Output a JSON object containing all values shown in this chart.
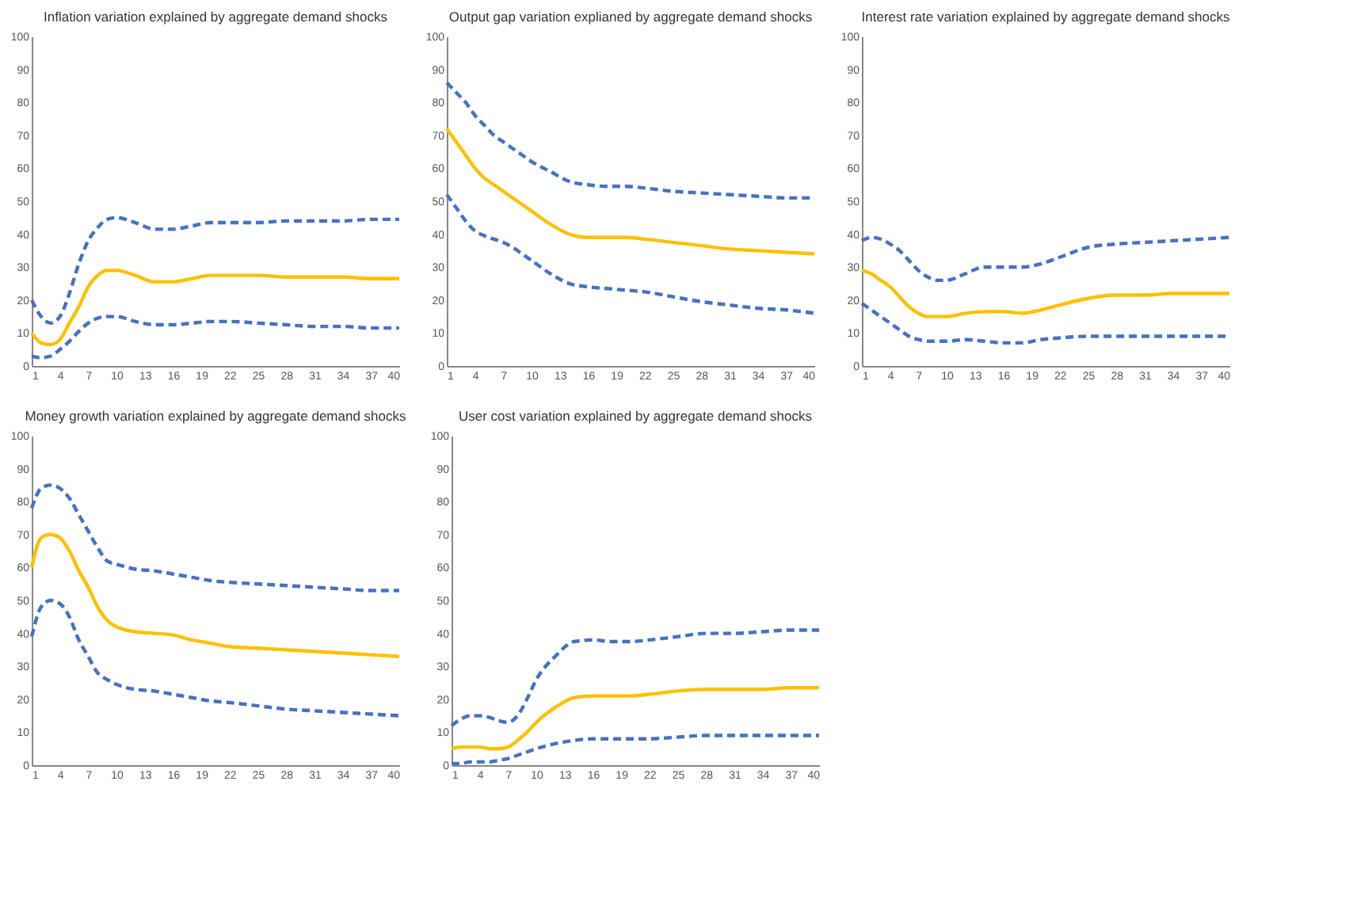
{
  "chart_data": [
    {
      "type": "line",
      "title": "Inflation variation explained by aggregate demand shocks",
      "x": [
        1,
        2,
        3,
        4,
        5,
        6,
        7,
        8,
        9,
        10,
        12,
        14,
        16,
        18,
        20,
        22,
        25,
        28,
        31,
        34,
        37,
        40
      ],
      "xlim": [
        1,
        40
      ],
      "xticks": [
        1,
        4,
        7,
        10,
        13,
        16,
        19,
        22,
        25,
        28,
        31,
        34,
        37,
        40
      ],
      "ylim": [
        0,
        100
      ],
      "yticks": [
        0,
        10,
        20,
        30,
        40,
        50,
        60,
        70,
        80,
        90,
        100
      ],
      "grid": false,
      "legend": false,
      "series": [
        {
          "color": "#4472c4",
          "line_style": "dashed",
          "values": [
            20,
            15,
            13,
            15,
            22,
            31,
            38,
            42,
            44.5,
            45,
            43.5,
            41.5,
            41.5,
            42.5,
            43.5,
            43.5,
            43.5,
            44,
            44,
            44,
            44.5,
            44.5
          ]
        },
        {
          "color": "#ffc000",
          "line_style": "solid",
          "values": [
            10,
            7,
            6.5,
            8,
            13,
            18,
            24,
            27.5,
            29,
            29,
            27.5,
            25.5,
            25.5,
            26.5,
            27.5,
            27.5,
            27.5,
            27,
            27,
            27,
            26.5,
            26.5
          ]
        },
        {
          "color": "#4472c4",
          "line_style": "dashed",
          "values": [
            3,
            2.5,
            3,
            5,
            7.5,
            10.5,
            13,
            14.5,
            15,
            15,
            13.5,
            12.5,
            12.5,
            13,
            13.5,
            13.5,
            13,
            12.5,
            12,
            12,
            11.5,
            11.5
          ]
        }
      ]
    },
    {
      "type": "line",
      "title": "Output gap variation explianed by aggregate demand shocks",
      "x": [
        1,
        2,
        3,
        4,
        5,
        6,
        7,
        8,
        9,
        10,
        12,
        14,
        16,
        18,
        20,
        22,
        25,
        28,
        31,
        34,
        37,
        40
      ],
      "xlim": [
        1,
        40
      ],
      "xticks": [
        1,
        4,
        7,
        10,
        13,
        16,
        19,
        22,
        25,
        28,
        31,
        34,
        37,
        40
      ],
      "ylim": [
        0,
        100
      ],
      "yticks": [
        0,
        10,
        20,
        30,
        40,
        50,
        60,
        70,
        80,
        90,
        100
      ],
      "grid": false,
      "legend": false,
      "series": [
        {
          "color": "#4472c4",
          "line_style": "dashed",
          "values": [
            86,
            83,
            80,
            76,
            73,
            70,
            68,
            66,
            64,
            62,
            59,
            56,
            55,
            54.5,
            54.5,
            54,
            53,
            52.5,
            52,
            51.5,
            51,
            51
          ]
        },
        {
          "color": "#ffc000",
          "line_style": "solid",
          "values": [
            72,
            68,
            64,
            60,
            57,
            55,
            53,
            51,
            49,
            47,
            43,
            40,
            39,
            39,
            39,
            38.5,
            37.5,
            36.5,
            35.5,
            35,
            34.5,
            34
          ]
        },
        {
          "color": "#4472c4",
          "line_style": "dashed",
          "values": [
            52,
            48,
            44,
            41,
            39.5,
            38.5,
            37.5,
            36,
            34,
            32,
            28,
            25,
            24,
            23.5,
            23,
            22.5,
            21,
            19.5,
            18.5,
            17.5,
            17,
            16
          ]
        }
      ]
    },
    {
      "type": "line",
      "title": "Interest rate variation explained by aggregate demand shocks",
      "x": [
        1,
        2,
        3,
        4,
        5,
        6,
        7,
        8,
        9,
        10,
        12,
        14,
        16,
        18,
        20,
        22,
        25,
        28,
        31,
        34,
        37,
        40
      ],
      "xlim": [
        1,
        40
      ],
      "xticks": [
        1,
        4,
        7,
        10,
        13,
        16,
        19,
        22,
        25,
        28,
        31,
        34,
        37,
        40
      ],
      "ylim": [
        0,
        100
      ],
      "yticks": [
        0,
        10,
        20,
        30,
        40,
        50,
        60,
        70,
        80,
        90,
        100
      ],
      "grid": false,
      "legend": false,
      "series": [
        {
          "color": "#4472c4",
          "line_style": "dashed",
          "values": [
            38,
            39,
            38.5,
            37,
            35,
            32,
            29,
            27,
            26,
            26,
            28,
            30,
            30,
            30,
            31,
            33,
            36,
            37,
            37.5,
            38,
            38.5,
            39
          ]
        },
        {
          "color": "#ffc000",
          "line_style": "solid",
          "values": [
            29,
            28,
            26,
            24,
            21,
            18,
            16,
            15,
            15,
            15,
            16,
            16.5,
            16.5,
            16,
            17,
            18.5,
            20.5,
            21.5,
            21.5,
            22,
            22,
            22
          ]
        },
        {
          "color": "#4472c4",
          "line_style": "dashed",
          "values": [
            19,
            17,
            15,
            13,
            11,
            9,
            8,
            7.5,
            7.5,
            7.5,
            8,
            7.5,
            7,
            7,
            8,
            8.5,
            9,
            9,
            9,
            9,
            9,
            9
          ]
        }
      ]
    },
    {
      "type": "line",
      "title": "Money growth variation explained by aggregate demand shocks",
      "x": [
        1,
        2,
        3,
        4,
        5,
        6,
        7,
        8,
        9,
        10,
        12,
        14,
        16,
        18,
        20,
        22,
        25,
        28,
        31,
        34,
        37,
        40
      ],
      "xlim": [
        1,
        40
      ],
      "xticks": [
        1,
        4,
        7,
        10,
        13,
        16,
        19,
        22,
        25,
        28,
        31,
        34,
        37,
        40
      ],
      "ylim": [
        0,
        100
      ],
      "yticks": [
        0,
        10,
        20,
        30,
        40,
        50,
        60,
        70,
        80,
        90,
        100
      ],
      "grid": false,
      "legend": false,
      "series": [
        {
          "color": "#4472c4",
          "line_style": "dashed",
          "values": [
            78,
            84,
            85,
            84,
            81,
            76,
            71,
            66,
            62,
            61,
            59.5,
            59,
            58,
            57,
            56,
            55.5,
            55,
            54.5,
            54,
            53.5,
            53,
            53
          ]
        },
        {
          "color": "#ffc000",
          "line_style": "solid",
          "values": [
            60,
            69,
            70,
            69,
            65,
            59,
            54,
            48,
            44,
            42,
            40.5,
            40,
            39.5,
            38,
            37,
            36,
            35.5,
            35,
            34.5,
            34,
            33.5,
            33
          ]
        },
        {
          "color": "#4472c4",
          "line_style": "dashed",
          "values": [
            39,
            48,
            50,
            49,
            45,
            38,
            33,
            28,
            26,
            24.5,
            23,
            22.5,
            21.5,
            20.5,
            19.5,
            19,
            18,
            17,
            16.5,
            16,
            15.5,
            15
          ]
        }
      ]
    },
    {
      "type": "line",
      "title": "User cost variation explained by aggregate demand shocks",
      "x": [
        1,
        2,
        3,
        4,
        5,
        6,
        7,
        8,
        9,
        10,
        12,
        14,
        16,
        18,
        20,
        22,
        25,
        28,
        31,
        34,
        37,
        40
      ],
      "xlim": [
        1,
        40
      ],
      "xticks": [
        1,
        4,
        7,
        10,
        13,
        16,
        19,
        22,
        25,
        28,
        31,
        34,
        37,
        40
      ],
      "ylim": [
        0,
        100
      ],
      "yticks": [
        0,
        10,
        20,
        30,
        40,
        50,
        60,
        70,
        80,
        90,
        100
      ],
      "grid": false,
      "legend": false,
      "series": [
        {
          "color": "#4472c4",
          "line_style": "dashed",
          "values": [
            12,
            14,
            15,
            15,
            14.5,
            13.5,
            13,
            15,
            20,
            26,
            33,
            37.5,
            38,
            37.5,
            37.5,
            38,
            39,
            40,
            40,
            40.5,
            41,
            41
          ]
        },
        {
          "color": "#ffc000",
          "line_style": "solid",
          "values": [
            5,
            5.5,
            5.5,
            5.5,
            5,
            5,
            5.5,
            7.5,
            10,
            13,
            17.5,
            20.5,
            21,
            21,
            21,
            21.5,
            22.5,
            23,
            23,
            23,
            23.5,
            23.5
          ]
        },
        {
          "color": "#4472c4",
          "line_style": "dashed",
          "values": [
            0.5,
            0.5,
            1,
            1,
            1,
            1.5,
            2,
            3,
            4,
            5,
            6.5,
            7.5,
            8,
            8,
            8,
            8,
            8.5,
            9,
            9,
            9,
            9,
            9
          ]
        }
      ]
    }
  ]
}
